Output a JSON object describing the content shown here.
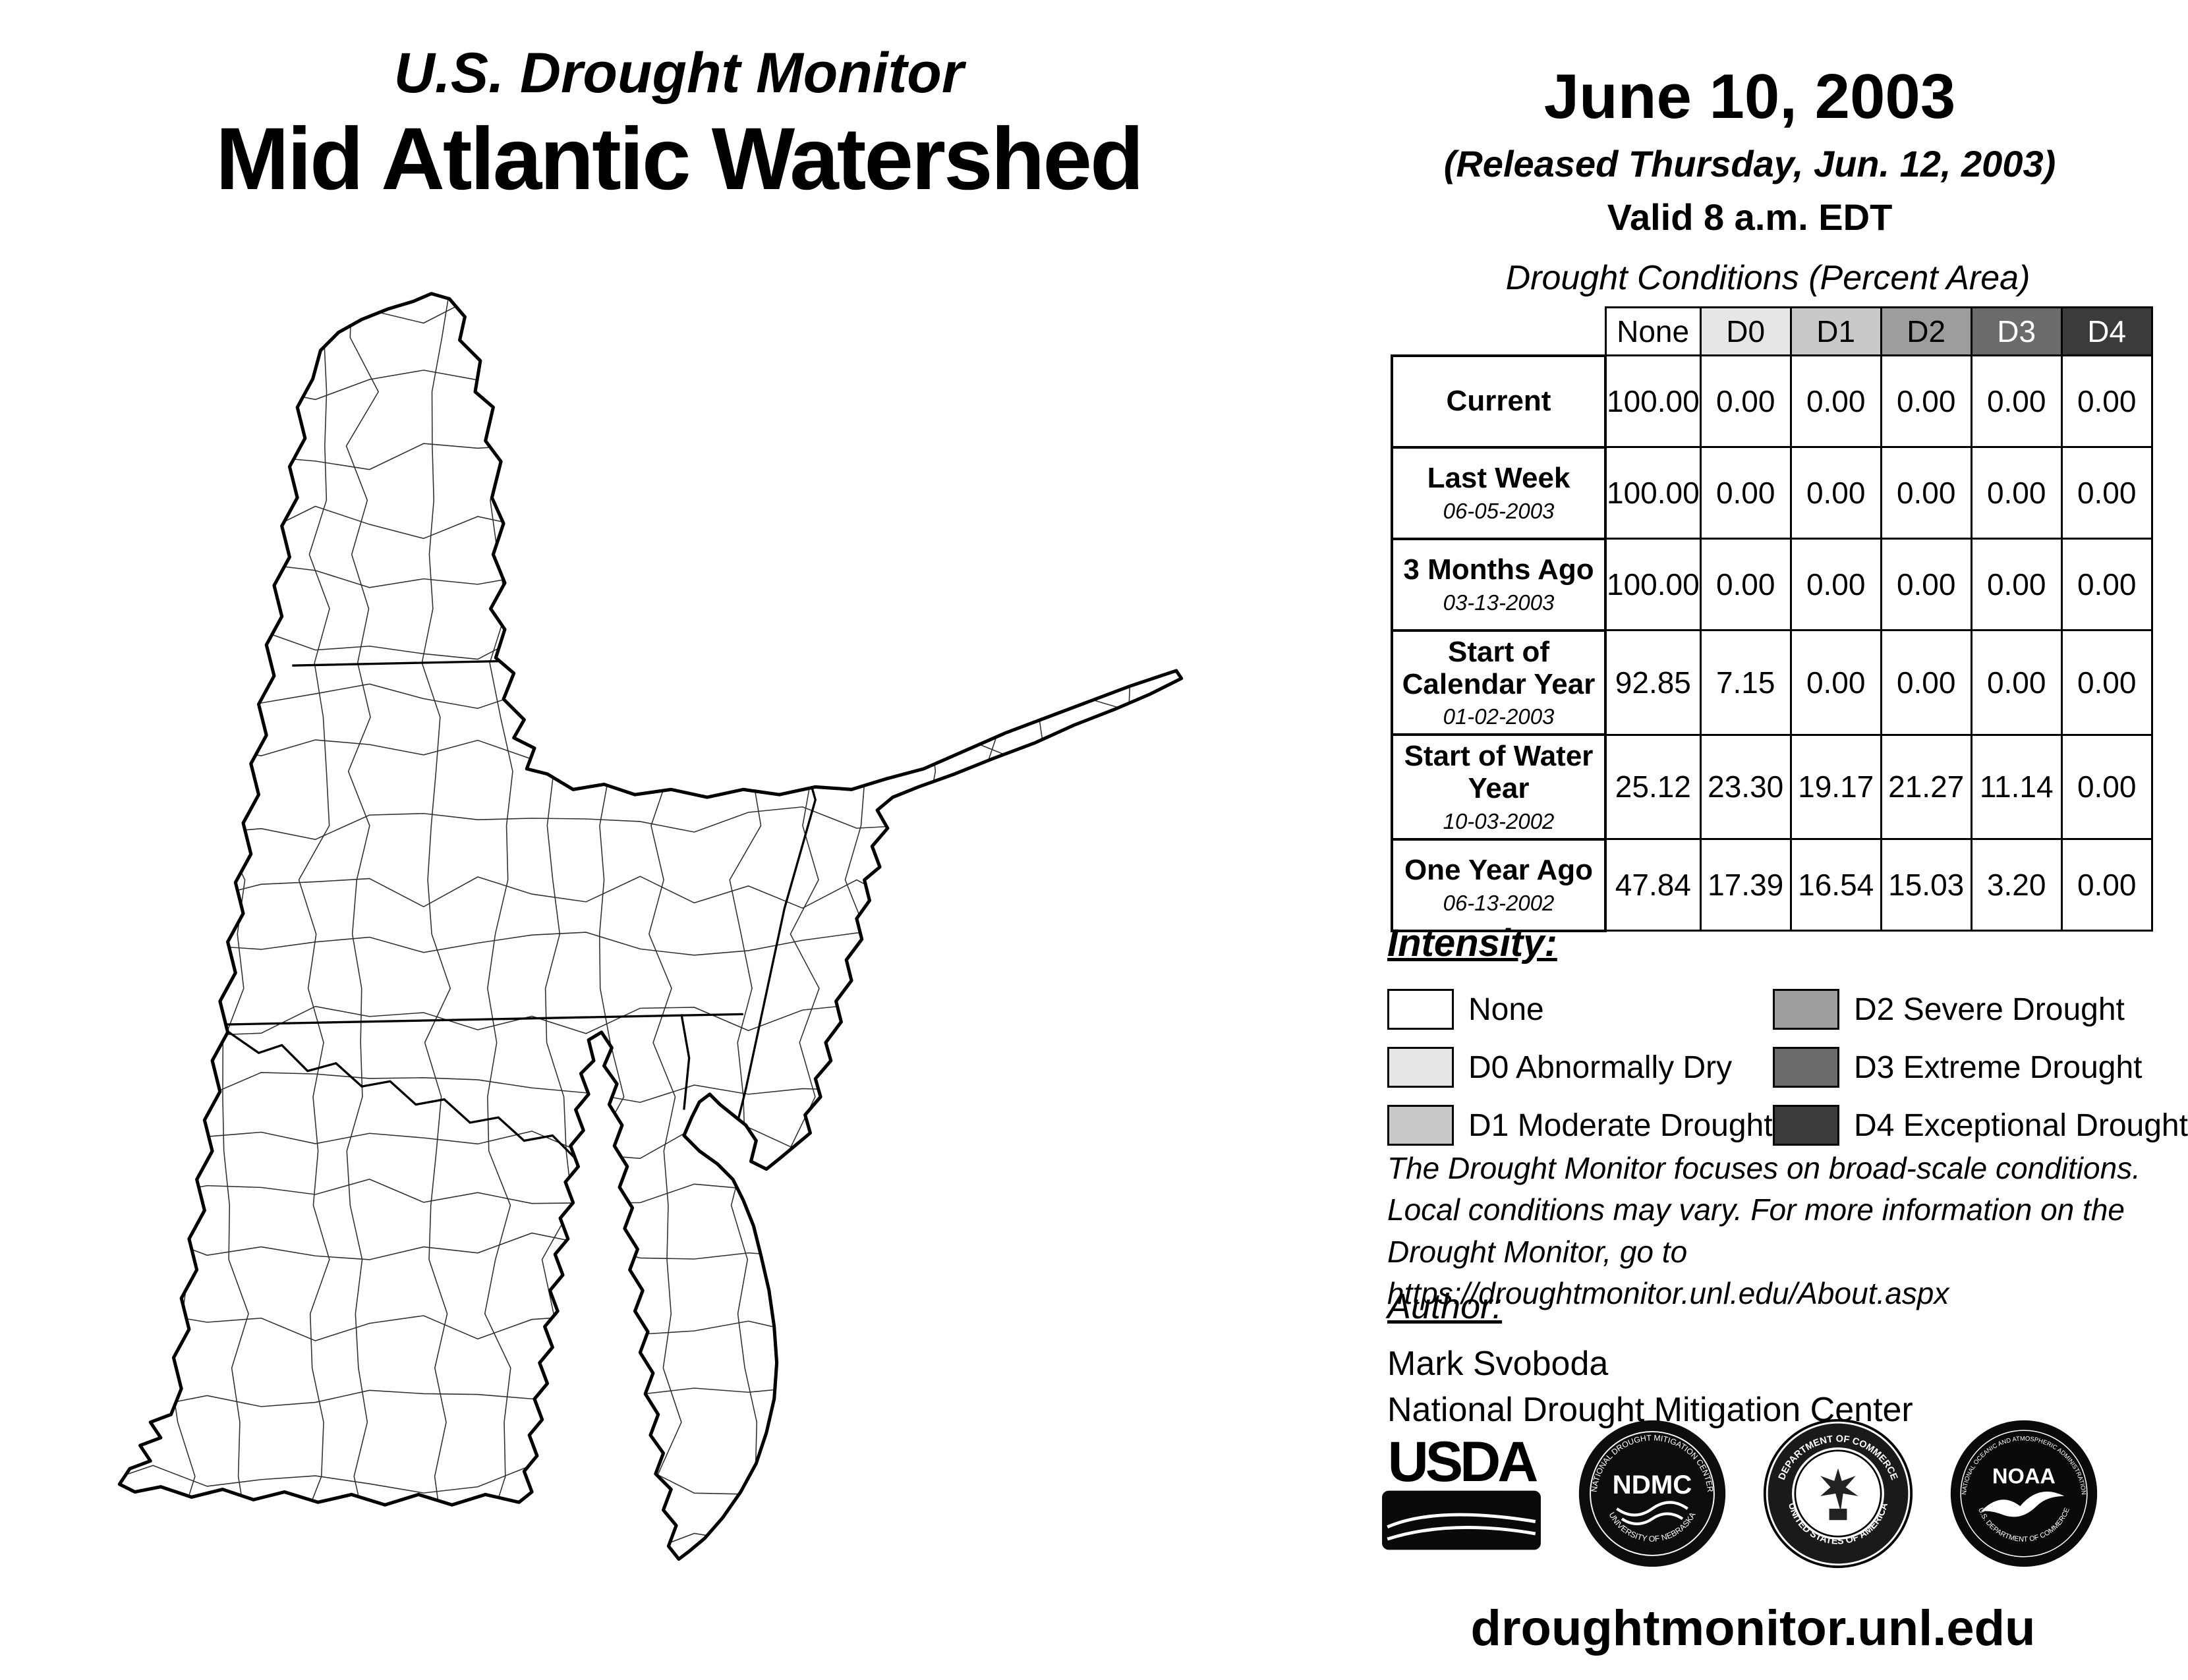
{
  "header": {
    "title_line1": "U.S. Drought Monitor",
    "title_line2": "Mid Atlantic Watershed",
    "date": "June 10, 2003",
    "released": "(Released Thursday, Jun. 12, 2003)",
    "valid": "Valid 8 a.m. EDT"
  },
  "table": {
    "title": "Drought Conditions (Percent Area)",
    "columns": [
      "None",
      "D0",
      "D1",
      "D2",
      "D3",
      "D4"
    ],
    "header_colors": [
      "#ffffff",
      "#e6e6e6",
      "#c9c9c9",
      "#9d9d9d",
      "#6b6b6b",
      "#3b3b3b"
    ],
    "header_text_colors": [
      "#000000",
      "#000000",
      "#000000",
      "#000000",
      "#ffffff",
      "#ffffff"
    ],
    "rows": [
      {
        "label": "Current",
        "sublabel": "",
        "values": [
          "100.00",
          "0.00",
          "0.00",
          "0.00",
          "0.00",
          "0.00"
        ]
      },
      {
        "label": "Last Week",
        "sublabel": "06-05-2003",
        "values": [
          "100.00",
          "0.00",
          "0.00",
          "0.00",
          "0.00",
          "0.00"
        ]
      },
      {
        "label": "3 Months Ago",
        "sublabel": "03-13-2003",
        "values": [
          "100.00",
          "0.00",
          "0.00",
          "0.00",
          "0.00",
          "0.00"
        ]
      },
      {
        "label": "Start of Calendar Year",
        "sublabel": "01-02-2003",
        "values": [
          "92.85",
          "7.15",
          "0.00",
          "0.00",
          "0.00",
          "0.00"
        ]
      },
      {
        "label": "Start of Water Year",
        "sublabel": "10-03-2002",
        "values": [
          "25.12",
          "23.30",
          "19.17",
          "21.27",
          "11.14",
          "0.00"
        ]
      },
      {
        "label": "One Year Ago",
        "sublabel": "06-13-2002",
        "values": [
          "47.84",
          "17.39",
          "16.54",
          "15.03",
          "3.20",
          "0.00"
        ]
      }
    ]
  },
  "legend": {
    "title": "Intensity:",
    "items": [
      {
        "label": "None",
        "color": "#ffffff"
      },
      {
        "label": "D0 Abnormally Dry",
        "color": "#e6e6e6"
      },
      {
        "label": "D1 Moderate Drought",
        "color": "#c9c9c9"
      },
      {
        "label": "D2 Severe Drought",
        "color": "#9d9d9d"
      },
      {
        "label": "D3 Extreme Drought",
        "color": "#6b6b6b"
      },
      {
        "label": "D4 Exceptional Drought",
        "color": "#3b3b3b"
      }
    ]
  },
  "disclaimer": {
    "line1": "The Drought Monitor focuses on broad-scale conditions.",
    "line2": "Local conditions may vary. For more information on the",
    "line3": "Drought Monitor, go to https://droughtmonitor.unl.edu/About.aspx"
  },
  "author": {
    "title": "Author:",
    "name": "Mark Svoboda",
    "org": "National Drought Mitigation Center"
  },
  "logos": {
    "usda": "USDA",
    "ndmc": "NDMC",
    "ndmc_ring_top": "NATIONAL DROUGHT MITIGATION CENTER",
    "ndmc_ring_bottom": "UNIVERSITY OF NEBRASKA",
    "commerce_ring_top": "DEPARTMENT OF COMMERCE",
    "commerce_ring_bottom": "UNITED STATES OF AMERICA",
    "noaa": "NOAA",
    "noaa_ring_top": "NATIONAL OCEANIC AND ATMOSPHERIC ADMINISTRATION",
    "noaa_ring_bottom": "U.S. DEPARTMENT OF COMMERCE"
  },
  "footer": {
    "url": "droughtmonitor.unl.edu"
  }
}
